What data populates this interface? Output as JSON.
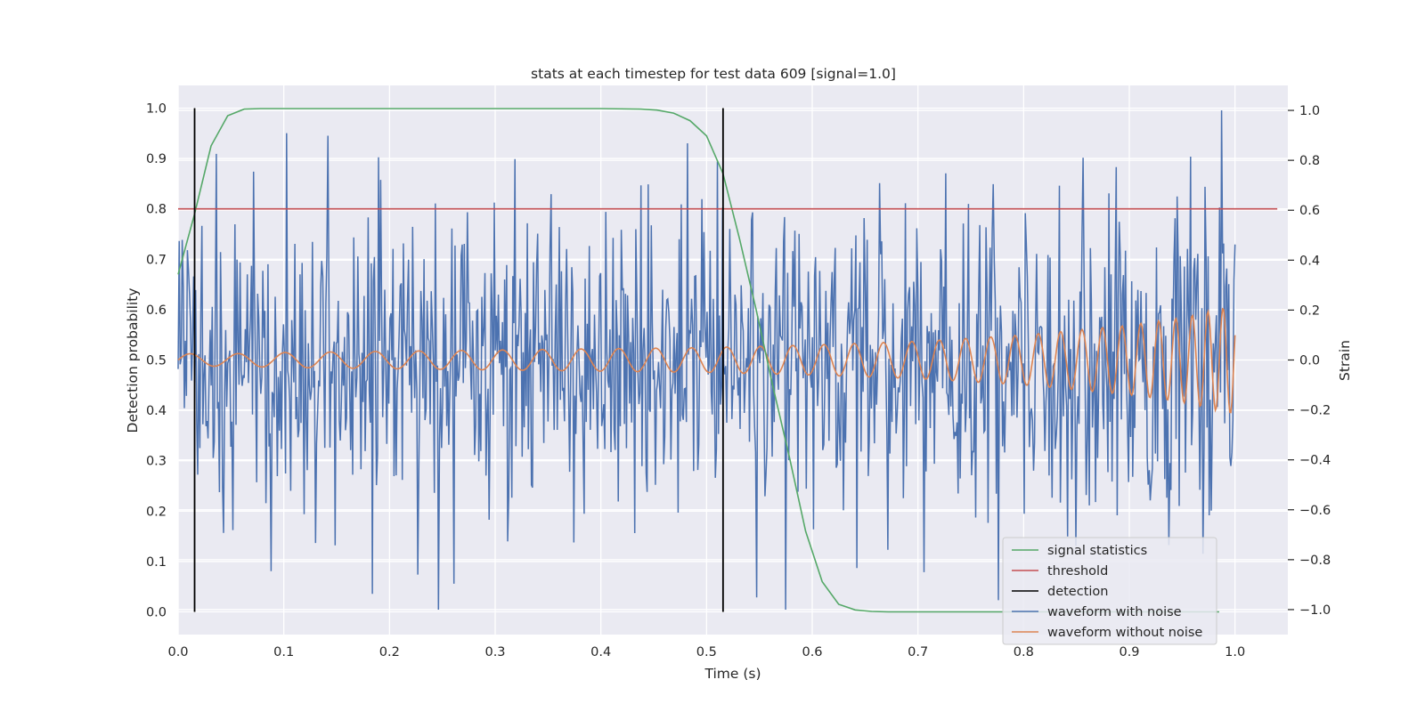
{
  "chart_data": {
    "type": "line",
    "title": "stats at each timestep for test data 609 [signal=1.0]",
    "xlabel": "Time (s)",
    "ylabel": "Detection probability",
    "y2label": "Strain",
    "xlim": [
      0.0,
      1.05
    ],
    "ylim": [
      -0.045,
      1.045
    ],
    "y2lim": [
      -1.1,
      1.1
    ],
    "grid": true,
    "legend_position": "lower-right",
    "x_ticks": [
      "0.0",
      "0.1",
      "0.2",
      "0.3",
      "0.4",
      "0.5",
      "0.6",
      "0.7",
      "0.8",
      "0.9",
      "1.0"
    ],
    "y_ticks": [
      "0.0",
      "0.1",
      "0.2",
      "0.3",
      "0.4",
      "0.5",
      "0.6",
      "0.7",
      "0.8",
      "0.9",
      "1.0"
    ],
    "y2_ticks": [
      "−1.0",
      "−0.8",
      "−0.6",
      "−0.4",
      "−0.2",
      "0.0",
      "0.2",
      "0.4",
      "0.6",
      "0.8",
      "1.0"
    ],
    "series": [
      {
        "name": "signal statistics",
        "axis": "left",
        "color": "#55a868",
        "x": [
          0.0,
          0.0156,
          0.0312,
          0.0469,
          0.0625,
          0.0781,
          0.1,
          0.2,
          0.3,
          0.4,
          0.4375,
          0.4531,
          0.4688,
          0.4844,
          0.5,
          0.5156,
          0.5312,
          0.5469,
          0.5625,
          0.5781,
          0.5938,
          0.6094,
          0.625,
          0.6406,
          0.6562,
          0.6719,
          0.7,
          0.8,
          0.9,
          0.985
        ],
        "values": [
          0.67,
          0.79,
          0.925,
          0.985,
          0.998,
          0.999,
          0.999,
          0.999,
          0.999,
          0.999,
          0.998,
          0.996,
          0.99,
          0.975,
          0.945,
          0.87,
          0.74,
          0.6,
          0.45,
          0.31,
          0.16,
          0.06,
          0.015,
          0.004,
          0.001,
          0.0,
          0.0,
          0.0,
          0.0,
          0.0
        ]
      },
      {
        "name": "threshold",
        "axis": "left",
        "color": "#c44e52",
        "x": [
          0.0,
          1.04
        ],
        "values": [
          0.8,
          0.8
        ]
      },
      {
        "name": "detection",
        "axis": "left",
        "color": "#000000",
        "x": [
          0.0156,
          0.5156
        ],
        "vlines": [
          0.0156,
          0.5156
        ],
        "ymin": 0.0,
        "ymax": 1.0
      },
      {
        "name": "waveform with noise",
        "axis": "right",
        "color": "#4c72b0",
        "x_start": 0.0,
        "x_end": 1.0,
        "n_points": 1024,
        "noise_sigma": 0.3,
        "range": [
          -1.0,
          1.0
        ]
      },
      {
        "name": "waveform without noise",
        "axis": "right",
        "color": "#dd8452",
        "x": [
          0.0,
          0.05,
          0.1,
          0.2,
          0.3,
          0.4,
          0.5,
          0.6,
          0.7,
          0.8,
          0.85,
          0.9,
          0.95,
          0.98,
          1.0
        ],
        "amplitude": [
          0.025,
          0.025,
          0.03,
          0.035,
          0.04,
          0.045,
          0.05,
          0.06,
          0.075,
          0.1,
          0.12,
          0.14,
          0.17,
          0.2,
          0.22
        ],
        "frequency_hz": [
          22,
          22,
          23,
          24,
          26,
          28,
          30,
          34,
          38,
          45,
          50,
          56,
          64,
          70,
          74
        ]
      }
    ]
  }
}
